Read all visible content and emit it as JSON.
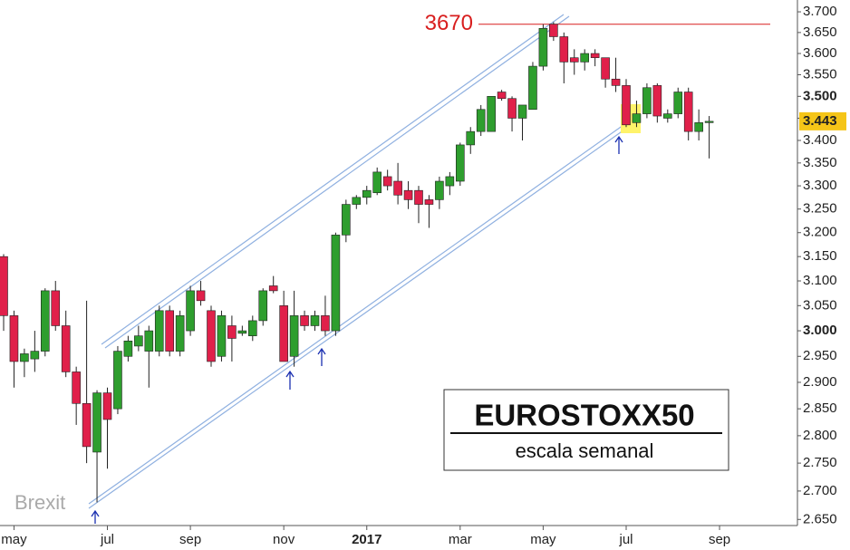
{
  "chart_data": {
    "type": "candlestick",
    "title": "EUROSTOXX50",
    "subtitle": "escala semanal",
    "annotation": "Brexit",
    "yscale": "log",
    "ylim": [
      2630,
      3720
    ],
    "yticks": [
      {
        "value": 2650,
        "label": "2.650"
      },
      {
        "value": 2700,
        "label": "2.700"
      },
      {
        "value": 2750,
        "label": "2.750"
      },
      {
        "value": 2800,
        "label": "2.800"
      },
      {
        "value": 2850,
        "label": "2.850"
      },
      {
        "value": 2900,
        "label": "2.900"
      },
      {
        "value": 2950,
        "label": "2.950"
      },
      {
        "value": 3000,
        "label": "3.000",
        "bold": true
      },
      {
        "value": 3050,
        "label": "3.050"
      },
      {
        "value": 3100,
        "label": "3.100"
      },
      {
        "value": 3150,
        "label": "3.150"
      },
      {
        "value": 3200,
        "label": "3.200"
      },
      {
        "value": 3250,
        "label": "3.250"
      },
      {
        "value": 3300,
        "label": "3.300"
      },
      {
        "value": 3350,
        "label": "3.350"
      },
      {
        "value": 3400,
        "label": "3.400"
      },
      {
        "value": 3450,
        "label": "3.450"
      },
      {
        "value": 3500,
        "label": "3.500",
        "bold": true
      },
      {
        "value": 3550,
        "label": "3.550"
      },
      {
        "value": 3600,
        "label": "3.600"
      },
      {
        "value": 3650,
        "label": "3.650"
      },
      {
        "value": 3700,
        "label": "3.700"
      }
    ],
    "categories": [
      null,
      "may",
      null,
      null,
      null,
      null,
      null,
      null,
      null,
      null,
      "jul",
      null,
      null,
      null,
      null,
      null,
      null,
      null,
      "sep",
      null,
      null,
      null,
      null,
      null,
      null,
      null,
      null,
      "nov",
      null,
      null,
      null,
      null,
      null,
      null,
      null,
      "2017",
      null,
      null,
      null,
      null,
      null,
      null,
      null,
      null,
      "mar",
      null,
      null,
      null,
      null,
      null,
      null,
      null,
      "may",
      null,
      null,
      null,
      null,
      null,
      null,
      null,
      "jul",
      null,
      null,
      null,
      null,
      null,
      null,
      null,
      null,
      "sep"
    ],
    "bold_categories": [
      "2017"
    ],
    "up_color": "#2e9e2e",
    "down_color": "#e0204a",
    "open": [
      3150,
      3030,
      2940,
      2945,
      2960,
      3080,
      3010,
      2920,
      2860,
      2770,
      2880,
      2850,
      2950,
      2970,
      2960,
      2960,
      3040,
      2960,
      3000,
      3080,
      3040,
      2950,
      3010,
      2995,
      2990,
      3020,
      3090,
      3050,
      2950,
      3030,
      3010,
      3030,
      3000,
      3195,
      3260,
      3275,
      3285,
      3320,
      3310,
      3290,
      3290,
      3270,
      3270,
      3300,
      3310,
      3390,
      3420,
      3420,
      3510,
      3495,
      3450,
      3470,
      3570,
      3670,
      3640,
      3590,
      3580,
      3600,
      3590,
      3540,
      3525,
      3440,
      3460,
      3525,
      3450,
      3460,
      3510,
      3420,
      3440,
      null
    ],
    "high": [
      3155,
      3040,
      2965,
      3000,
      3085,
      3100,
      3040,
      2930,
      3060,
      2885,
      2890,
      2970,
      2990,
      3010,
      3010,
      3050,
      3050,
      3040,
      3090,
      3100,
      3050,
      3040,
      3030,
      3010,
      3030,
      3085,
      3110,
      3080,
      3080,
      3040,
      3040,
      3070,
      3200,
      3270,
      3280,
      3300,
      3340,
      3335,
      3350,
      3310,
      3300,
      3280,
      3320,
      3330,
      3395,
      3430,
      3480,
      3500,
      3515,
      3500,
      3480,
      3580,
      3670,
      3675,
      3650,
      3610,
      3610,
      3610,
      3590,
      3590,
      3540,
      3490,
      3530,
      3530,
      3470,
      3520,
      3520,
      3470,
      3455,
      null
    ],
    "low": [
      3000,
      2890,
      2910,
      2920,
      2950,
      3000,
      2910,
      2820,
      2750,
      2680,
      2740,
      2840,
      2940,
      2960,
      2890,
      2950,
      2950,
      2950,
      2990,
      3050,
      2930,
      2940,
      2940,
      2990,
      2980,
      3010,
      3075,
      2940,
      2930,
      3000,
      3000,
      2990,
      2990,
      3180,
      3250,
      3260,
      3280,
      3290,
      3260,
      3250,
      3220,
      3210,
      3250,
      3280,
      3300,
      3370,
      3410,
      3420,
      3490,
      3420,
      3400,
      3470,
      3560,
      3630,
      3530,
      3550,
      3560,
      3570,
      3520,
      3510,
      3430,
      3430,
      3450,
      3440,
      3440,
      3450,
      3400,
      3400,
      3360,
      null
    ],
    "close": [
      3030,
      2940,
      2955,
      2960,
      3080,
      3010,
      2920,
      2860,
      2780,
      2880,
      2830,
      2960,
      2980,
      2990,
      3000,
      3040,
      2960,
      3030,
      3080,
      3060,
      2940,
      3030,
      2985,
      3000,
      3020,
      3080,
      3080,
      2940,
      3030,
      3010,
      3030,
      3000,
      3195,
      3260,
      3275,
      3290,
      3330,
      3300,
      3280,
      3270,
      3260,
      3260,
      3310,
      3320,
      3390,
      3420,
      3470,
      3500,
      3495,
      3450,
      3480,
      3570,
      3660,
      3640,
      3580,
      3580,
      3600,
      3590,
      3540,
      3525,
      3435,
      3460,
      3520,
      3455,
      3460,
      3510,
      3420,
      3440,
      3443,
      null
    ],
    "resistance": {
      "value": 3670,
      "label": "3670",
      "color": "#d81e1e"
    },
    "last_price": {
      "value": 3443,
      "label": "3.443",
      "color": "#f5c518"
    }
  }
}
